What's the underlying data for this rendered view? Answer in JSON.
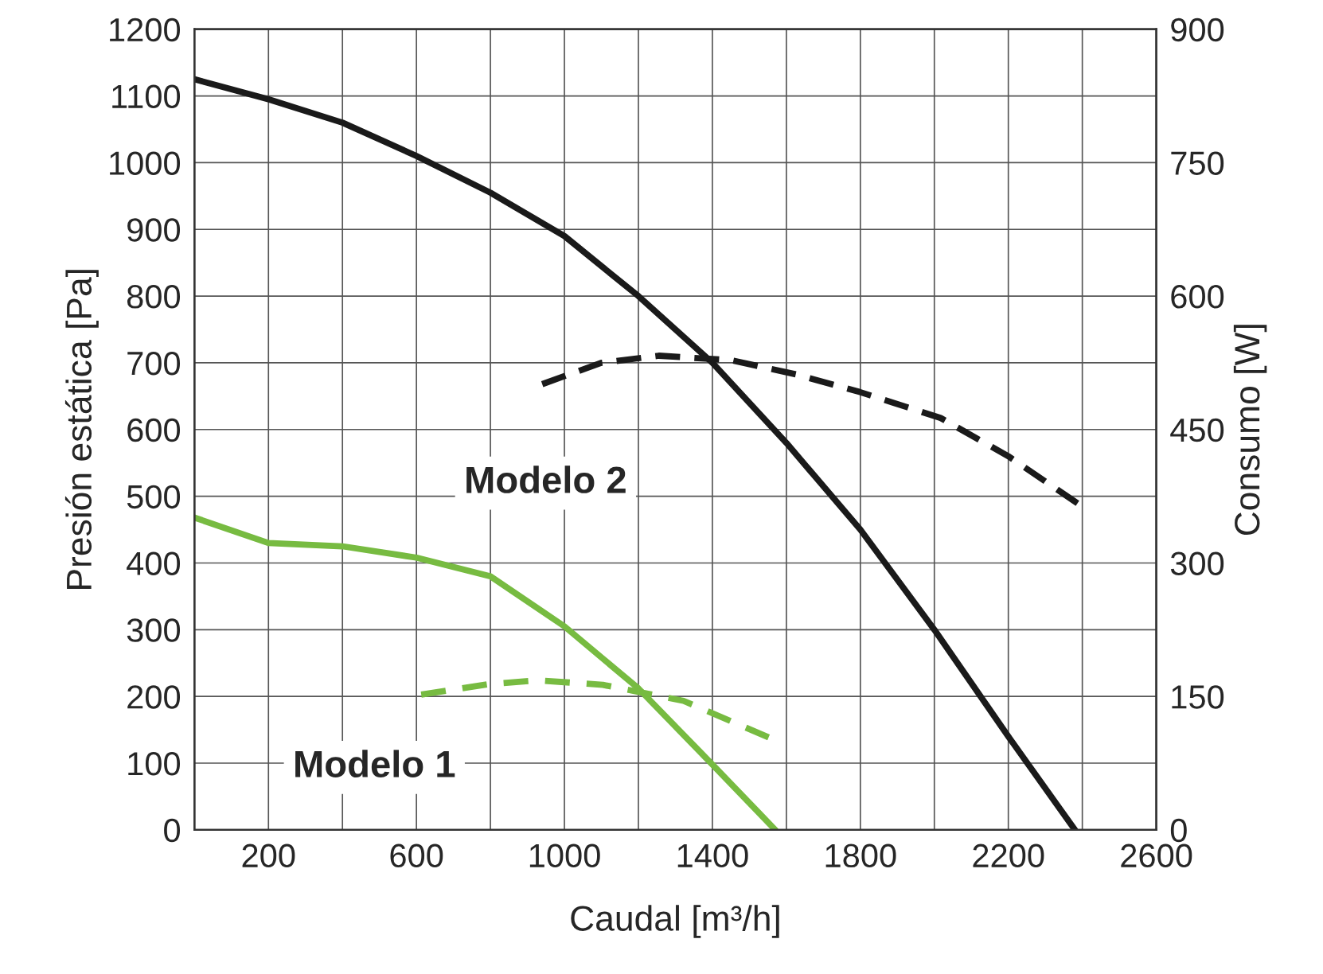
{
  "chart_data": {
    "type": "line",
    "xlabel": "Caudal [m³/h]",
    "ylabel": "Presión estática [Pa]",
    "y2label": "Consumo [W]",
    "xlim": [
      0,
      2600
    ],
    "xticks": [
      200,
      {
        "value": 400,
        "label": null
      },
      600,
      {
        "value": 800,
        "label": null
      },
      1000,
      {
        "value": 1200,
        "label": null
      },
      1400,
      {
        "value": 1600,
        "label": null
      },
      1800,
      {
        "value": 2000,
        "label": null
      },
      2200,
      {
        "value": 2400,
        "label": null
      },
      2600
    ],
    "ylim": [
      0,
      1200
    ],
    "yticks": [
      0,
      100,
      200,
      300,
      400,
      500,
      600,
      700,
      800,
      900,
      1000,
      1100,
      1200
    ],
    "y2lim": [
      0,
      900
    ],
    "y2ticks": [
      0,
      150,
      300,
      450,
      600,
      750,
      900
    ],
    "grid": true,
    "series": [
      {
        "color": "#1a1a1a",
        "line_style": "solid",
        "x": [
          0,
          200,
          400,
          600,
          800,
          1000,
          1200,
          1400,
          1600,
          1800,
          2000,
          2200,
          2380
        ],
        "values": [
          1125,
          1095,
          1060,
          1010,
          955,
          890,
          800,
          700,
          580,
          450,
          300,
          140,
          0
        ]
      },
      {
        "color": "#1a1a1a",
        "line_style": "dashed",
        "axis": "y2",
        "x": [
          940,
          1100,
          1255,
          1450,
          1626,
          1800,
          2017,
          2200,
          2387
        ],
        "values": [
          501,
          525,
          533,
          528,
          512,
          492,
          463,
          420,
          367
        ]
      },
      {
        "color": "#77bb41",
        "line_style": "solid",
        "x": [
          0,
          200,
          400,
          600,
          800,
          1000,
          1200,
          1400,
          1570
        ],
        "values": [
          468,
          430,
          425,
          408,
          380,
          305,
          212,
          98,
          0
        ]
      },
      {
        "color": "#77bb41",
        "line_style": "dashed",
        "axis": "y2",
        "x": [
          613,
          800,
          930,
          1104,
          1322,
          1552
        ],
        "values": [
          152,
          164,
          168,
          163,
          145,
          104
        ]
      }
    ],
    "annotations": [
      "Modelo 2",
      "Modelo 1"
    ]
  }
}
